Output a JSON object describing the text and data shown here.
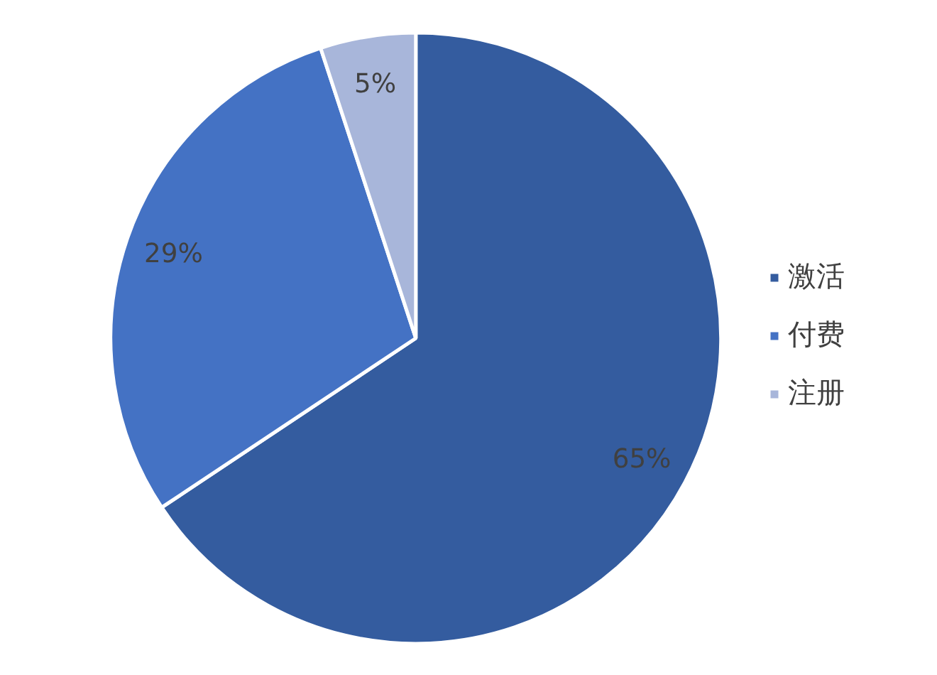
{
  "chart_data": {
    "type": "pie",
    "categories": [
      "激活",
      "付费",
      "注册"
    ],
    "values": [
      65,
      29,
      5
    ],
    "colors": [
      "#345c9f",
      "#4472c4",
      "#a8b6da"
    ],
    "value_labels": [
      "65%",
      "29%",
      "5%"
    ],
    "legend": "right"
  }
}
